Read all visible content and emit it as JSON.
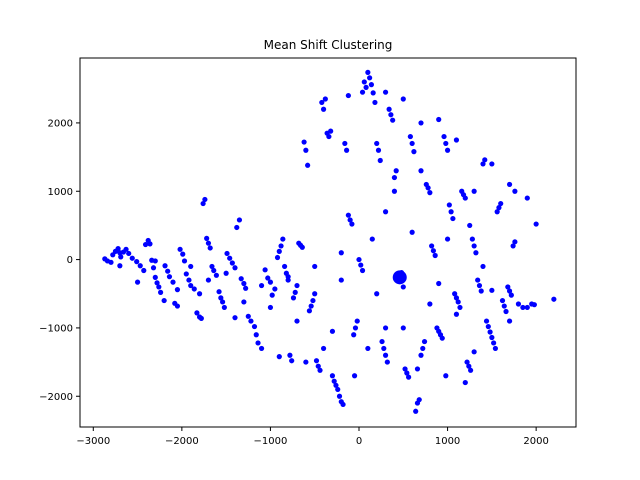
{
  "chart_data": {
    "type": "scatter",
    "title": "Mean Shift Clustering",
    "xlabel": "",
    "ylabel": "",
    "xlim": [
      -3150,
      2450
    ],
    "ylim": [
      -2450,
      2950
    ],
    "xticks": [
      -3000,
      -2000,
      -1000,
      0,
      1000,
      2000
    ],
    "yticks": [
      -2000,
      -1000,
      0,
      1000,
      2000
    ],
    "grid": false,
    "legend": "none",
    "colors": {
      "points": "#0000ff",
      "axes": "#000000",
      "background": "#ffffff"
    },
    "series": [
      {
        "points": [
          [
            -2870,
            10
          ],
          [
            -2840,
            -20
          ],
          [
            -2800,
            -40
          ],
          [
            -2780,
            70
          ],
          [
            -2750,
            120
          ],
          [
            -2720,
            160
          ],
          [
            -2700,
            100
          ],
          [
            -2690,
            40
          ],
          [
            -2660,
            110
          ],
          [
            -2630,
            150
          ],
          [
            -2600,
            90
          ],
          [
            -2560,
            20
          ],
          [
            -2510,
            -30
          ],
          [
            -2470,
            -90
          ],
          [
            -2430,
            -160
          ],
          [
            -2410,
            220
          ],
          [
            -2380,
            280
          ],
          [
            -2360,
            230
          ],
          [
            -2340,
            -10
          ],
          [
            -2320,
            -120
          ],
          [
            -2300,
            -260
          ],
          [
            -2280,
            -340
          ],
          [
            -2260,
            -400
          ],
          [
            -2240,
            -480
          ],
          [
            -2190,
            -90
          ],
          [
            -2160,
            -170
          ],
          [
            -2140,
            -250
          ],
          [
            -2100,
            -330
          ],
          [
            -2080,
            -640
          ],
          [
            -2050,
            -680
          ],
          [
            -2020,
            150
          ],
          [
            -1990,
            80
          ],
          [
            -1970,
            -20
          ],
          [
            -1950,
            -210
          ],
          [
            -1920,
            -300
          ],
          [
            -1900,
            -380
          ],
          [
            -1860,
            -430
          ],
          [
            -1830,
            -780
          ],
          [
            -1800,
            -840
          ],
          [
            -1780,
            -860
          ],
          [
            -1760,
            820
          ],
          [
            -1740,
            880
          ],
          [
            -1720,
            310
          ],
          [
            -1700,
            240
          ],
          [
            -1680,
            170
          ],
          [
            -1660,
            -100
          ],
          [
            -1640,
            -160
          ],
          [
            -1610,
            -230
          ],
          [
            -1580,
            -470
          ],
          [
            -1560,
            -560
          ],
          [
            -1540,
            -620
          ],
          [
            -1520,
            -700
          ],
          [
            -1490,
            90
          ],
          [
            -1460,
            20
          ],
          [
            -1430,
            -50
          ],
          [
            -1400,
            -120
          ],
          [
            -1380,
            470
          ],
          [
            -1350,
            580
          ],
          [
            -1330,
            -280
          ],
          [
            -1300,
            -350
          ],
          [
            -1280,
            -420
          ],
          [
            -1250,
            -830
          ],
          [
            -1220,
            -900
          ],
          [
            -1180,
            -980
          ],
          [
            -1160,
            -1100
          ],
          [
            -1140,
            -1220
          ],
          [
            -1100,
            -1300
          ],
          [
            -1060,
            -150
          ],
          [
            -1030,
            -270
          ],
          [
            -1000,
            -330
          ],
          [
            -980,
            -520
          ],
          [
            -950,
            -430
          ],
          [
            -920,
            30
          ],
          [
            -900,
            120
          ],
          [
            -880,
            200
          ],
          [
            -860,
            300
          ],
          [
            -840,
            -100
          ],
          [
            -820,
            -200
          ],
          [
            -800,
            -300
          ],
          [
            -780,
            -1400
          ],
          [
            -760,
            -1480
          ],
          [
            -740,
            -560
          ],
          [
            -720,
            -480
          ],
          [
            -700,
            -380
          ],
          [
            -680,
            240
          ],
          [
            -660,
            210
          ],
          [
            -640,
            180
          ],
          [
            -620,
            1720
          ],
          [
            -600,
            1600
          ],
          [
            -580,
            1380
          ],
          [
            -560,
            -750
          ],
          [
            -540,
            -680
          ],
          [
            -520,
            -600
          ],
          [
            -500,
            -500
          ],
          [
            -480,
            -1480
          ],
          [
            -460,
            -1560
          ],
          [
            -440,
            -1620
          ],
          [
            -420,
            2300
          ],
          [
            -400,
            2200
          ],
          [
            -380,
            2350
          ],
          [
            -360,
            1850
          ],
          [
            -340,
            1800
          ],
          [
            -320,
            1880
          ],
          [
            -300,
            -1700
          ],
          [
            -280,
            -1780
          ],
          [
            -260,
            -1840
          ],
          [
            -240,
            -1900
          ],
          [
            -220,
            -2000
          ],
          [
            -200,
            -2080
          ],
          [
            -180,
            -2120
          ],
          [
            -160,
            1700
          ],
          [
            -140,
            1600
          ],
          [
            -120,
            650
          ],
          [
            -100,
            580
          ],
          [
            -80,
            520
          ],
          [
            -60,
            -1100
          ],
          [
            -40,
            -1000
          ],
          [
            -20,
            -900
          ],
          [
            0,
            0
          ],
          [
            20,
            -80
          ],
          [
            40,
            -160
          ],
          [
            60,
            2600
          ],
          [
            80,
            2520
          ],
          [
            100,
            2740
          ],
          [
            120,
            2660
          ],
          [
            140,
            2560
          ],
          [
            160,
            2440
          ],
          [
            180,
            2300
          ],
          [
            200,
            1700
          ],
          [
            220,
            1600
          ],
          [
            240,
            1450
          ],
          [
            260,
            -1200
          ],
          [
            280,
            -1300
          ],
          [
            300,
            -1400
          ],
          [
            320,
            -1500
          ],
          [
            340,
            2200
          ],
          [
            360,
            2120
          ],
          [
            380,
            2040
          ],
          [
            400,
            1200
          ],
          [
            420,
            1300
          ],
          [
            440,
            -270
          ],
          [
            460,
            -230
          ],
          [
            480,
            -190
          ],
          [
            500,
            -400
          ],
          [
            520,
            -1600
          ],
          [
            540,
            -1660
          ],
          [
            560,
            -1720
          ],
          [
            580,
            1800
          ],
          [
            600,
            1700
          ],
          [
            620,
            1580
          ],
          [
            640,
            -2220
          ],
          [
            660,
            -2100
          ],
          [
            680,
            -2050
          ],
          [
            700,
            -1400
          ],
          [
            720,
            -1300
          ],
          [
            740,
            -1200
          ],
          [
            760,
            1100
          ],
          [
            780,
            1050
          ],
          [
            800,
            980
          ],
          [
            820,
            200
          ],
          [
            840,
            130
          ],
          [
            860,
            60
          ],
          [
            880,
            -1000
          ],
          [
            900,
            -1050
          ],
          [
            920,
            -1100
          ],
          [
            940,
            -1150
          ],
          [
            960,
            1800
          ],
          [
            980,
            1700
          ],
          [
            1000,
            1600
          ],
          [
            1020,
            800
          ],
          [
            1040,
            700
          ],
          [
            1060,
            600
          ],
          [
            1080,
            -500
          ],
          [
            1100,
            -560
          ],
          [
            1120,
            -620
          ],
          [
            1140,
            -700
          ],
          [
            1160,
            1000
          ],
          [
            1180,
            950
          ],
          [
            1200,
            900
          ],
          [
            1220,
            -1500
          ],
          [
            1240,
            -1560
          ],
          [
            1260,
            -1620
          ],
          [
            1280,
            300
          ],
          [
            1300,
            200
          ],
          [
            1320,
            100
          ],
          [
            1340,
            -300
          ],
          [
            1360,
            -380
          ],
          [
            1380,
            -460
          ],
          [
            1400,
            1400
          ],
          [
            1420,
            1460
          ],
          [
            1440,
            -900
          ],
          [
            1460,
            -980
          ],
          [
            1480,
            -1060
          ],
          [
            1500,
            -1140
          ],
          [
            1520,
            -1220
          ],
          [
            1540,
            -1300
          ],
          [
            1560,
            700
          ],
          [
            1580,
            760
          ],
          [
            1600,
            820
          ],
          [
            1620,
            -600
          ],
          [
            1640,
            -680
          ],
          [
            1660,
            -760
          ],
          [
            1680,
            -400
          ],
          [
            1700,
            -460
          ],
          [
            1720,
            -520
          ],
          [
            1740,
            200
          ],
          [
            1760,
            260
          ],
          [
            1800,
            -650
          ],
          [
            1850,
            -700
          ],
          [
            1900,
            900
          ],
          [
            1950,
            -650
          ],
          [
            2000,
            520
          ],
          [
            2200,
            -580
          ],
          [
            1980,
            -660
          ],
          [
            1760,
            1000
          ],
          [
            1500,
            1400
          ],
          [
            1200,
            -1800
          ],
          [
            980,
            -1700
          ],
          [
            660,
            -1600
          ],
          [
            300,
            -1000
          ],
          [
            -300,
            -1050
          ],
          [
            -600,
            -1500
          ],
          [
            -900,
            -1420
          ],
          [
            -1300,
            -620
          ],
          [
            -1700,
            -300
          ],
          [
            -2050,
            -440
          ],
          [
            -2500,
            -330
          ],
          [
            -2700,
            -90
          ],
          [
            -120,
            2400
          ],
          [
            40,
            2450
          ],
          [
            300,
            2450
          ],
          [
            500,
            2350
          ],
          [
            700,
            2000
          ],
          [
            900,
            2050
          ],
          [
            1100,
            1750
          ],
          [
            1300,
            1000
          ],
          [
            1700,
            1100
          ],
          [
            1400,
            -100
          ],
          [
            900,
            -350
          ],
          [
            200,
            -500
          ],
          [
            -200,
            -300
          ],
          [
            -500,
            -100
          ],
          [
            -800,
            -250
          ],
          [
            -1100,
            -380
          ],
          [
            -1500,
            -200
          ],
          [
            -1900,
            -100
          ],
          [
            -2300,
            -20
          ],
          [
            300,
            700
          ],
          [
            600,
            400
          ],
          [
            800,
            -650
          ],
          [
            1100,
            -800
          ],
          [
            1300,
            -1350
          ],
          [
            500,
            -1000
          ],
          [
            100,
            -1300
          ],
          [
            -50,
            -1700
          ],
          [
            -400,
            -1300
          ],
          [
            -700,
            -900
          ],
          [
            -1000,
            -700
          ],
          [
            -1400,
            -850
          ],
          [
            -1800,
            -500
          ],
          [
            -2200,
            -600
          ],
          [
            -200,
            100
          ],
          [
            150,
            300
          ],
          [
            400,
            1000
          ],
          [
            700,
            1300
          ],
          [
            1000,
            300
          ],
          [
            1250,
            500
          ],
          [
            1500,
            -450
          ],
          [
            1700,
            -900
          ],
          [
            1900,
            -700
          ]
        ]
      },
      {
        "name": "",
        "centers": [
          [
            460,
            -260
          ]
        ]
      }
    ]
  }
}
